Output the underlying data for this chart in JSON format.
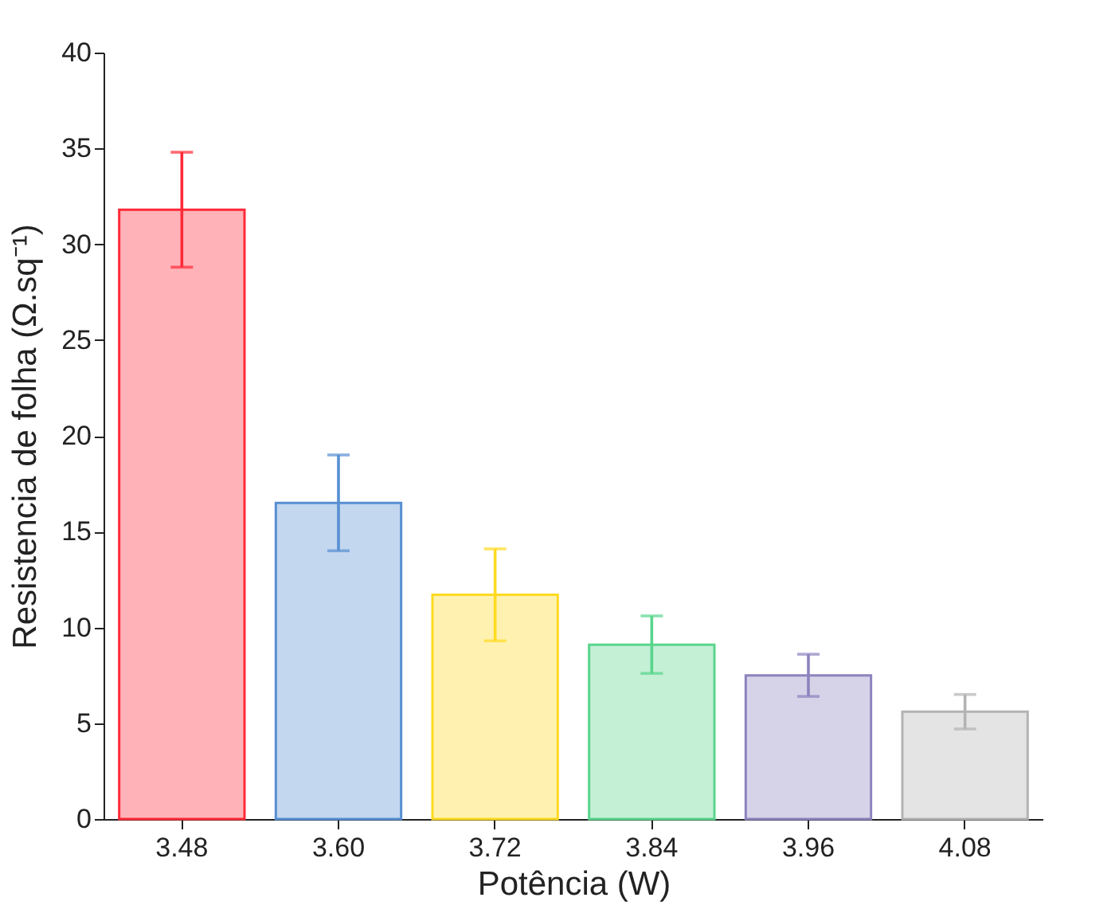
{
  "chart_data": {
    "type": "bar",
    "xlabel": "Potência (W)",
    "ylabel": "Resistencia de folha (Ω.sq⁻¹)",
    "categories": [
      "3.48",
      "3.60",
      "3.72",
      "3.84",
      "3.96",
      "4.08"
    ],
    "values": [
      31.8,
      16.5,
      11.7,
      9.1,
      7.5,
      5.6
    ],
    "errors": [
      3.0,
      2.5,
      2.4,
      1.5,
      1.1,
      0.9
    ],
    "colors": [
      "#ffb3b8",
      "#c3d7ef",
      "#fff2b0",
      "#c4f0d6",
      "#d6d3e8",
      "#e4e4e4"
    ],
    "ylim": [
      0,
      40
    ],
    "yticks": [
      0,
      5,
      10,
      15,
      20,
      25,
      30,
      35,
      40
    ],
    "grid": false
  }
}
